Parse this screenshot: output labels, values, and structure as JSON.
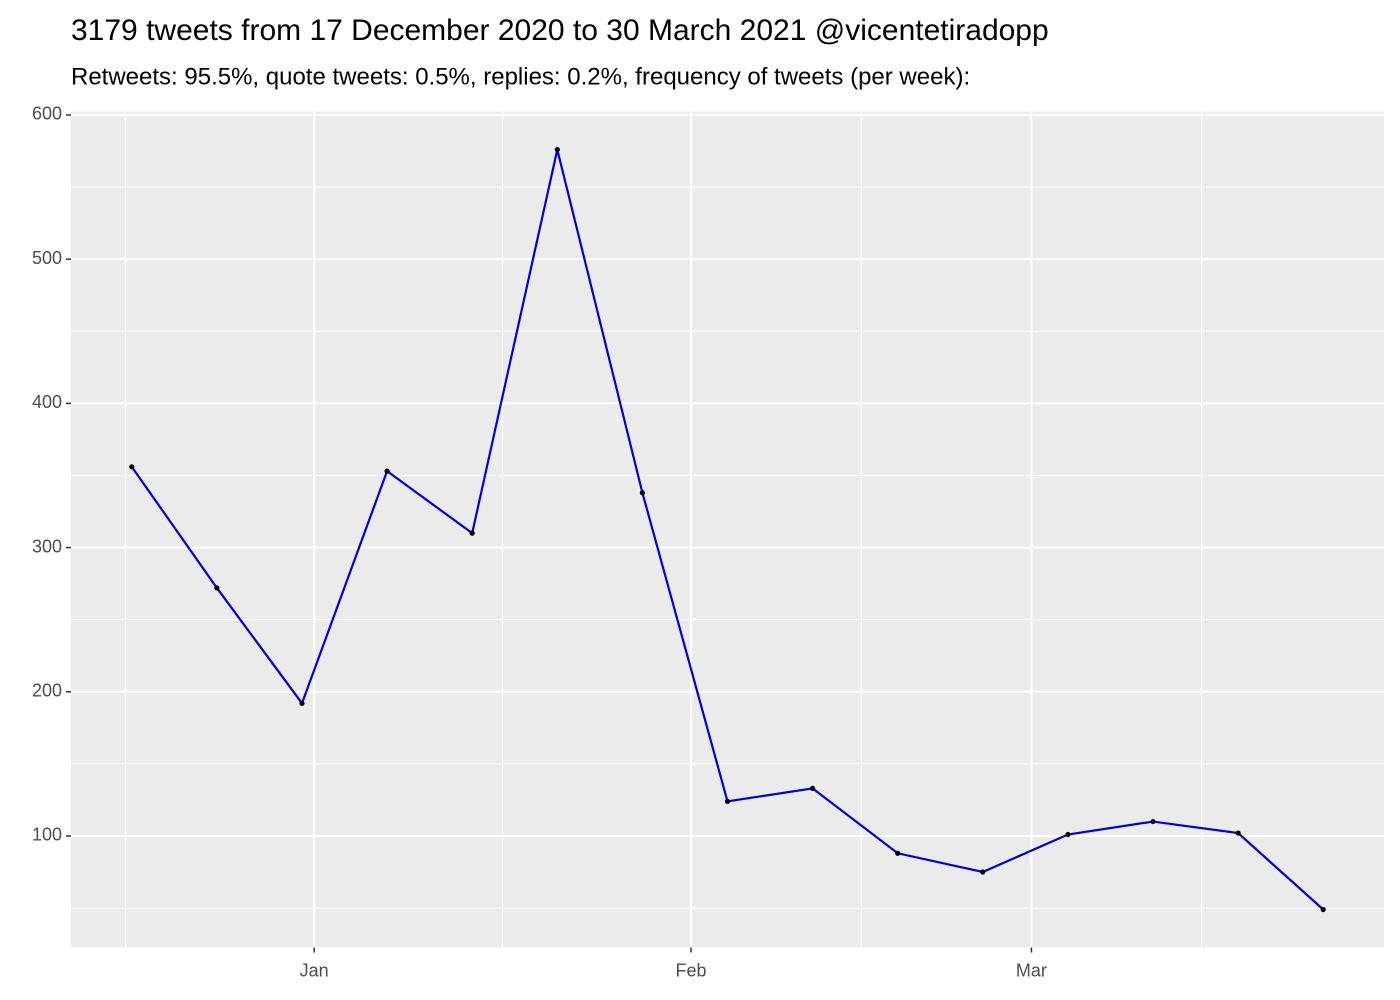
{
  "chart_data": {
    "type": "line",
    "title": "3179 tweets from 17 December 2020 to 30 March 2021 @vicentetiradopp",
    "subtitle": "Retweets: 95.5%, quote tweets: 0.5%, replies: 0.2%, frequency of tweets (per week):",
    "x": [
      "2020-12-17",
      "2020-12-24",
      "2020-12-31",
      "2021-01-07",
      "2021-01-14",
      "2021-01-21",
      "2021-01-28",
      "2021-02-04",
      "2021-02-11",
      "2021-02-18",
      "2021-02-25",
      "2021-03-04",
      "2021-03-11",
      "2021-03-18",
      "2021-03-25"
    ],
    "values": [
      356,
      272,
      192,
      353,
      310,
      576,
      338,
      124,
      133,
      88,
      75,
      101,
      110,
      102,
      49
    ],
    "color": "#0000dd",
    "point_color": "#000000",
    "xlim": [
      "2020-12-12",
      "2021-03-30"
    ],
    "xticks": [
      {
        "value": "2021-01-01",
        "label": "Jan"
      },
      {
        "value": "2021-02-01",
        "label": "Feb"
      },
      {
        "value": "2021-03-01",
        "label": "Mar"
      }
    ],
    "ylim": [
      22.65,
      602.35
    ],
    "yticks": [
      100,
      200,
      300,
      400,
      500,
      600
    ],
    "grid": true
  }
}
